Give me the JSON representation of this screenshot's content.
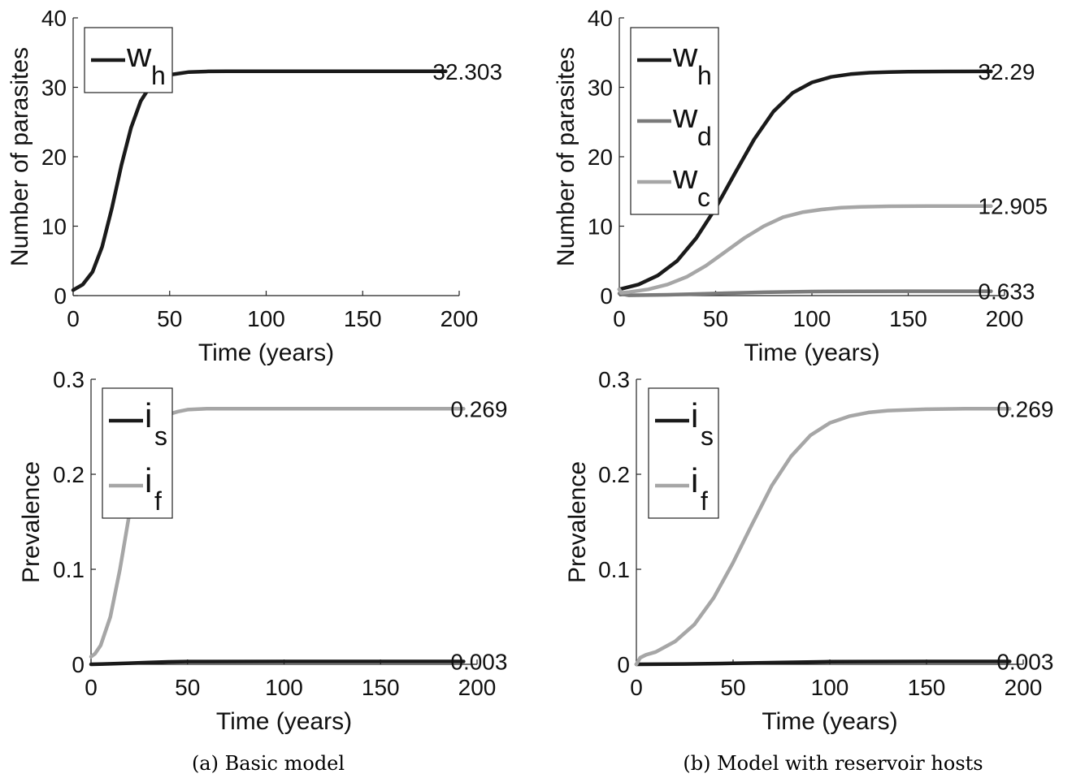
{
  "chart_data": [
    {
      "type": "line",
      "xlabel": "Time (years)",
      "ylabel": "Number of parasites",
      "xlim": [
        0,
        200
      ],
      "ylim": [
        0,
        40
      ],
      "xticks": [
        "0",
        "50",
        "100",
        "150",
        "200"
      ],
      "yticks": [
        "0",
        "10",
        "20",
        "30",
        "40"
      ],
      "legend_placement": "top-left",
      "series": [
        {
          "name": "w",
          "sub": "h",
          "color": "#1a1a1a",
          "end_label": "32.303",
          "x": [
            0,
            5,
            10,
            15,
            20,
            25,
            30,
            35,
            40,
            45,
            50,
            60,
            70,
            80,
            100,
            150,
            193
          ],
          "y": [
            0.8,
            1.6,
            3.4,
            7.0,
            12.5,
            18.8,
            24.2,
            28.0,
            30.2,
            31.3,
            31.8,
            32.2,
            32.29,
            32.3,
            32.303,
            32.303,
            32.303
          ]
        }
      ]
    },
    {
      "type": "line",
      "xlabel": "Time (years)",
      "ylabel": "Number of parasites",
      "xlim": [
        0,
        200
      ],
      "ylim": [
        0,
        40
      ],
      "xticks": [
        "0",
        "50",
        "100",
        "150",
        "200"
      ],
      "yticks": [
        "0",
        "10",
        "20",
        "30",
        "40"
      ],
      "legend_placement": "top-left",
      "series": [
        {
          "name": "w",
          "sub": "h",
          "color": "#1a1a1a",
          "end_label": "32.29",
          "x": [
            0,
            10,
            20,
            30,
            40,
            50,
            60,
            70,
            80,
            90,
            100,
            110,
            120,
            130,
            140,
            150,
            170,
            193
          ],
          "y": [
            0.9,
            1.6,
            2.9,
            5.0,
            8.3,
            12.6,
            17.6,
            22.5,
            26.5,
            29.2,
            30.7,
            31.5,
            31.9,
            32.1,
            32.2,
            32.25,
            32.28,
            32.29
          ]
        },
        {
          "name": "w",
          "sub": "d",
          "color": "#7a7a7a",
          "end_label": "0.633",
          "x": [
            0,
            5,
            25,
            50,
            75,
            100,
            125,
            150,
            193
          ],
          "y": [
            0.3,
            0.05,
            0.12,
            0.3,
            0.48,
            0.58,
            0.62,
            0.63,
            0.633
          ]
        },
        {
          "name": "w",
          "sub": "c",
          "color": "#a6a6a6",
          "end_label": "12.905",
          "x": [
            0,
            1,
            5,
            15,
            25,
            35,
            45,
            55,
            65,
            75,
            85,
            95,
            105,
            115,
            125,
            140,
            160,
            193
          ],
          "y": [
            0.9,
            0.4,
            0.5,
            0.9,
            1.6,
            2.7,
            4.3,
            6.3,
            8.3,
            10.0,
            11.3,
            12.0,
            12.4,
            12.65,
            12.78,
            12.86,
            12.895,
            12.905
          ]
        }
      ]
    },
    {
      "type": "line",
      "xlabel": "Time (years)",
      "ylabel": "Prevalence",
      "xlim": [
        0,
        200
      ],
      "ylim": [
        0,
        0.3
      ],
      "xticks": [
        "0",
        "50",
        "100",
        "150",
        "200"
      ],
      "yticks": [
        "0",
        "0.1",
        "0.2",
        "0.3"
      ],
      "legend_placement": "top-left",
      "series": [
        {
          "name": "i",
          "sub": "s",
          "color": "#1a1a1a",
          "end_label": "0.003",
          "x": [
            0,
            10,
            20,
            30,
            40,
            50,
            100,
            150,
            193
          ],
          "y": [
            0.0,
            0.0005,
            0.0012,
            0.002,
            0.0026,
            0.0029,
            0.003,
            0.003,
            0.003
          ]
        },
        {
          "name": "i",
          "sub": "f",
          "color": "#a6a6a6",
          "end_label": "0.269",
          "x": [
            0,
            2,
            5,
            10,
            15,
            20,
            25,
            30,
            35,
            40,
            45,
            50,
            60,
            70,
            80,
            100,
            150,
            193
          ],
          "y": [
            0.008,
            0.011,
            0.02,
            0.05,
            0.1,
            0.16,
            0.21,
            0.24,
            0.256,
            0.263,
            0.266,
            0.268,
            0.269,
            0.269,
            0.269,
            0.269,
            0.269,
            0.269
          ]
        }
      ]
    },
    {
      "type": "line",
      "xlabel": "Time (years)",
      "ylabel": "Prevalence",
      "xlim": [
        0,
        200
      ],
      "ylim": [
        0,
        0.3
      ],
      "xticks": [
        "0",
        "50",
        "100",
        "150",
        "200"
      ],
      "yticks": [
        "0",
        "0.1",
        "0.2",
        "0.3"
      ],
      "legend_placement": "top-left",
      "series": [
        {
          "name": "i",
          "sub": "s",
          "color": "#1a1a1a",
          "end_label": "0.003",
          "x": [
            0,
            25,
            50,
            75,
            100,
            125,
            150,
            193
          ],
          "y": [
            0.0,
            0.0003,
            0.001,
            0.002,
            0.0027,
            0.0029,
            0.003,
            0.003
          ]
        },
        {
          "name": "i",
          "sub": "f",
          "color": "#a6a6a6",
          "end_label": "0.269",
          "x": [
            0,
            2,
            5,
            10,
            20,
            30,
            40,
            50,
            60,
            70,
            80,
            90,
            100,
            110,
            120,
            130,
            150,
            170,
            193
          ],
          "y": [
            0.0,
            0.007,
            0.01,
            0.013,
            0.024,
            0.042,
            0.07,
            0.107,
            0.148,
            0.188,
            0.219,
            0.241,
            0.254,
            0.261,
            0.265,
            0.267,
            0.2685,
            0.269,
            0.269
          ]
        }
      ]
    }
  ],
  "captions": {
    "a": "(a) Basic model",
    "b": "(b) Model with reservoir hosts"
  }
}
